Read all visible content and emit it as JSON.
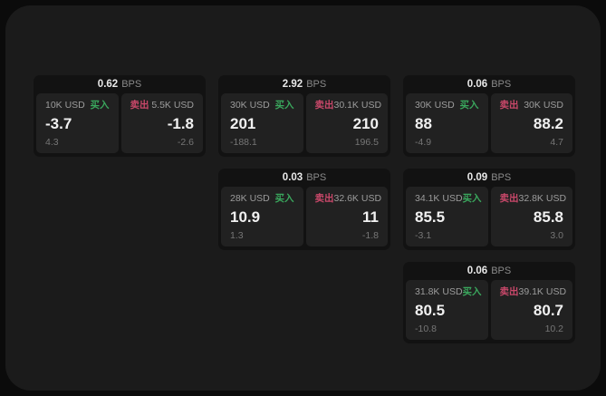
{
  "colors": {
    "buy_green": "#3aa75d",
    "sell_red": "#c9486a",
    "panel_bg": "#1b1b1b",
    "card_bg": "#121212",
    "quote_bg": "#212121"
  },
  "cards": [
    {
      "bps_value": "0.62",
      "bps_unit": "BPS",
      "buy": {
        "amount": "10K USD",
        "side": "买入",
        "value": "-3.7",
        "sub": "4.3"
      },
      "sell": {
        "side": "卖出",
        "amount": "5.5K USD",
        "value": "-1.8",
        "sub": "-2.6"
      }
    },
    {
      "bps_value": "2.92",
      "bps_unit": "BPS",
      "buy": {
        "amount": "30K USD",
        "side": "买入",
        "value": "201",
        "sub": "-188.1"
      },
      "sell": {
        "side": "卖出",
        "amount": "30.1K USD",
        "value": "210",
        "sub": "196.5"
      }
    },
    {
      "bps_value": "0.06",
      "bps_unit": "BPS",
      "buy": {
        "amount": "30K USD",
        "side": "买入",
        "value": "88",
        "sub": "-4.9"
      },
      "sell": {
        "side": "卖出",
        "amount": "30K USD",
        "value": "88.2",
        "sub": "4.7"
      }
    },
    {
      "bps_value": "0.03",
      "bps_unit": "BPS",
      "buy": {
        "amount": "28K USD",
        "side": "买入",
        "value": "10.9",
        "sub": "1.3"
      },
      "sell": {
        "side": "卖出",
        "amount": "32.6K USD",
        "value": "11",
        "sub": "-1.8"
      }
    },
    {
      "bps_value": "0.09",
      "bps_unit": "BPS",
      "buy": {
        "amount": "34.1K USD",
        "side": "买入",
        "value": "85.5",
        "sub": "-3.1"
      },
      "sell": {
        "side": "卖出",
        "amount": "32.8K USD",
        "value": "85.8",
        "sub": "3.0"
      }
    },
    {
      "bps_value": "0.06",
      "bps_unit": "BPS",
      "buy": {
        "amount": "31.8K USD",
        "side": "买入",
        "value": "80.5",
        "sub": "-10.8"
      },
      "sell": {
        "side": "卖出",
        "amount": "39.1K USD",
        "value": "80.7",
        "sub": "10.2"
      }
    }
  ]
}
